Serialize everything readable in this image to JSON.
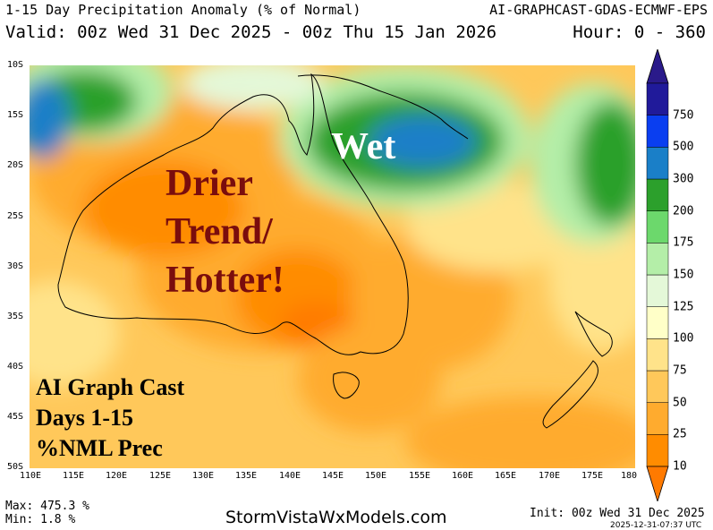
{
  "header": {
    "title": "1-15 Day Precipitation Anomaly (% of Normal)",
    "model": "AI-GRAPHCAST-GDAS-ECMWF-EPS",
    "valid": "Valid: 00z Wed 31 Dec 2025 - 00z Thu 15 Jan 2026",
    "hours": "Hour: 0 - 360"
  },
  "axes": {
    "lat_labels": [
      "10S",
      "15S",
      "20S",
      "25S",
      "30S",
      "35S",
      "40S",
      "45S",
      "50S"
    ],
    "lon_labels": [
      "110E",
      "115E",
      "120E",
      "125E",
      "130E",
      "135E",
      "140E",
      "145E",
      "150E",
      "155E",
      "160E",
      "165E",
      "170E",
      "175E",
      "180"
    ]
  },
  "annotations": {
    "drier": [
      "Drier",
      "Trend/",
      "Hotter!"
    ],
    "wet": "Wet",
    "model_box": [
      "AI Graph Cast",
      "Days 1-15",
      "%NML Prec"
    ]
  },
  "colorbar": {
    "levels": [
      "10",
      "25",
      "50",
      "75",
      "100",
      "125",
      "150",
      "175",
      "200",
      "300",
      "500",
      "750"
    ],
    "colors": [
      "#ff8c00",
      "#ffab2e",
      "#ffc85a",
      "#ffe38a",
      "#ffffc8",
      "#e4f8d8",
      "#b4eea8",
      "#6cd86c",
      "#2ca02c",
      "#1a7fc8",
      "#0a3ef0",
      "#201a9a"
    ],
    "under_color": "#ff7a00",
    "over_color": "#2a1a8a"
  },
  "footer": {
    "max": "Max: 475.3 %",
    "min": "Min: 1.8 %",
    "site": "StormVistaWxModels.com",
    "init": "Init: 00z Wed 31 Dec 2025",
    "stamp": "2025-12-31-07:37 UTC"
  }
}
